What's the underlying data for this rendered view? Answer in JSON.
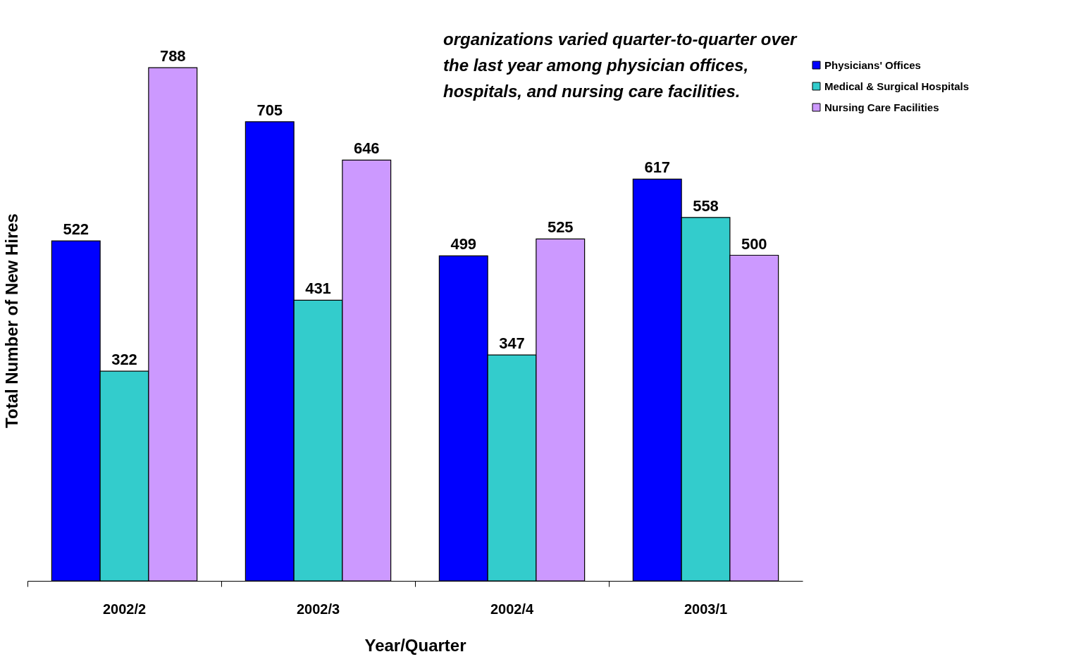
{
  "chart_data": {
    "type": "bar",
    "xlabel": "Year/Quarter",
    "ylabel": "Total Number of New Hires",
    "categories": [
      "2002/2",
      "2002/3",
      "2002/4",
      "2003/1"
    ],
    "series": [
      {
        "name": "Physicians' Offices",
        "color": "#0000ff",
        "values": [
          522,
          705,
          499,
          617
        ]
      },
      {
        "name": "Medical & Surgical Hospitals",
        "color": "#33cccc",
        "values": [
          322,
          431,
          347,
          558
        ]
      },
      {
        "name": "Nursing Care Facilities",
        "color": "#cc99ff",
        "values": [
          788,
          646,
          525,
          500
        ]
      }
    ],
    "data_labels": true,
    "legend": "right",
    "grid": false,
    "annotations": [
      "organizations varied quarter-to-quarter over the last year among physician offices, hospitals, and nursing care facilities."
    ]
  }
}
